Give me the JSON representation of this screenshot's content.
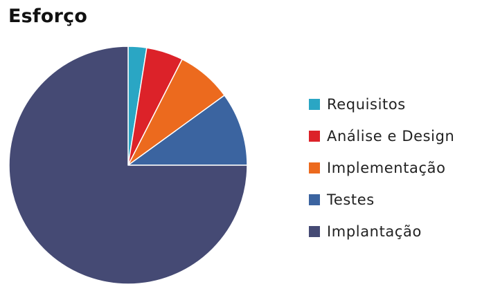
{
  "chart_data": {
    "type": "pie",
    "title": "Esforço",
    "legend_position": "right",
    "series": [
      {
        "name": "Requisitos",
        "value": 2.5,
        "color": "#2AA6C4"
      },
      {
        "name": "Análise e Design",
        "value": 5,
        "color": "#DC2229"
      },
      {
        "name": "Implementação",
        "value": 7.5,
        "color": "#EC6A1E"
      },
      {
        "name": "Testes",
        "value": 10,
        "color": "#3B64A0"
      },
      {
        "name": "Implantação",
        "value": 75,
        "color": "#454A74"
      }
    ]
  }
}
